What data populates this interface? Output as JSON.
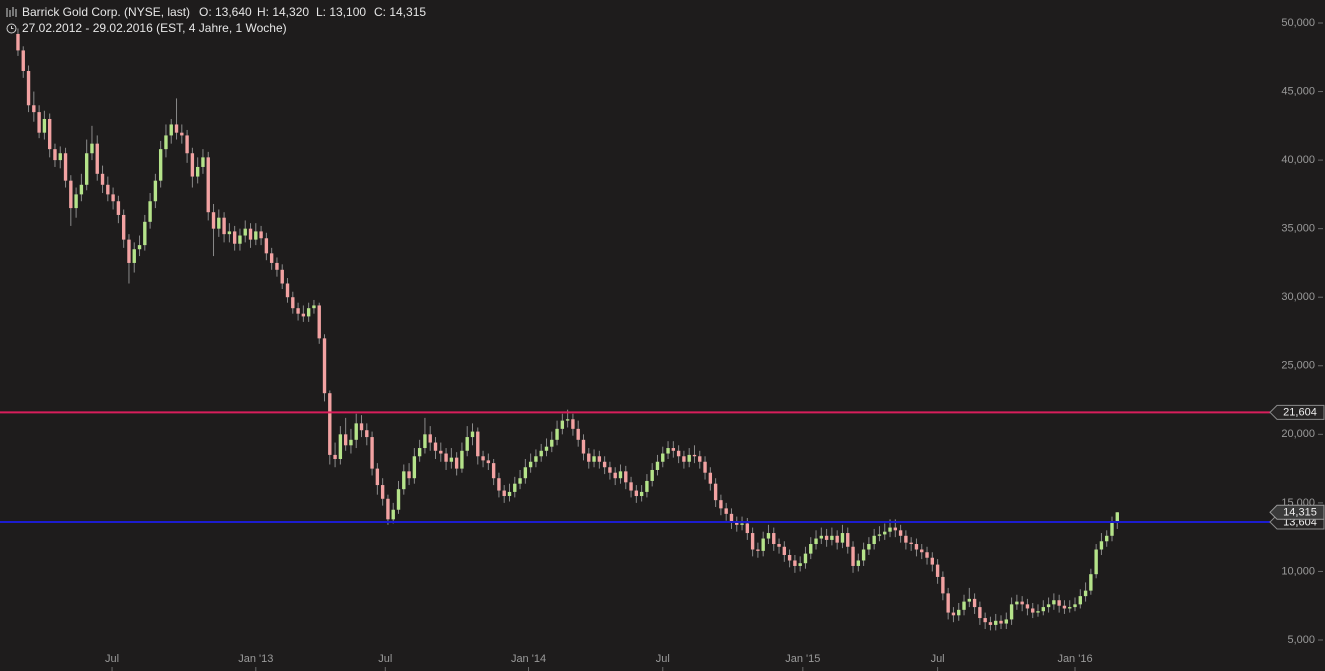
{
  "chart_data": {
    "type": "candlestick",
    "title": "Barrick Gold Corp. (NYSE, last)",
    "ohlc_summary": [
      "O: 13,640",
      "H: 14,320",
      "L: 13,100",
      "C: 14,315"
    ],
    "period": "27.02.2012 - 29.02.2016 (EST, 4 Jahre, 1 Woche)",
    "up_color": "#b5e38a",
    "down_color": "#f2a2a2",
    "wick_color": "#8a8a8a",
    "ylim": [
      2.739,
      51.677
    ],
    "yticks": [
      {
        "value": 5,
        "label": "5,000"
      },
      {
        "value": 10,
        "label": "10,000"
      },
      {
        "value": 15,
        "label": "15,000"
      },
      {
        "value": 20,
        "label": "20,000"
      },
      {
        "value": 25,
        "label": "25,000"
      },
      {
        "value": 30,
        "label": "30,000"
      },
      {
        "value": 35,
        "label": "35,000"
      },
      {
        "value": 40,
        "label": "40,000"
      },
      {
        "value": 45,
        "label": "45,000"
      },
      {
        "value": 50,
        "label": "50,000"
      }
    ],
    "xlim": [
      -3.4,
      247.3
    ],
    "xticks": [
      {
        "value": 17.8,
        "label": "Jul"
      },
      {
        "value": 45,
        "label": "Jan '13"
      },
      {
        "value": 69.5,
        "label": "Jul"
      },
      {
        "value": 96.6,
        "label": "Jan '14"
      },
      {
        "value": 122,
        "label": "Jul"
      },
      {
        "value": 148.5,
        "label": "Jan '15"
      },
      {
        "value": 174,
        "label": "Jul"
      },
      {
        "value": 200,
        "label": "Jan '16"
      }
    ],
    "grid": false,
    "hlines": [
      {
        "value": 21.604,
        "label": "21,604",
        "color": "#d81e5b"
      },
      {
        "value": 13.604,
        "label": "13,604",
        "color": "#1c1ccf"
      }
    ],
    "last_price": {
      "value": 14.315,
      "label": "14,315"
    },
    "ohlc": [
      [
        49.2,
        49.6,
        47.6,
        48.0
      ],
      [
        48.0,
        48.3,
        46.0,
        46.5
      ],
      [
        46.5,
        46.9,
        43.5,
        44.0
      ],
      [
        44.0,
        45.0,
        42.8,
        43.5
      ],
      [
        43.5,
        44.0,
        41.6,
        42.0
      ],
      [
        42.0,
        43.6,
        41.5,
        43.0
      ],
      [
        43.0,
        43.4,
        40.2,
        40.8
      ],
      [
        40.8,
        41.2,
        39.5,
        40.0
      ],
      [
        40.0,
        41.0,
        39.4,
        40.5
      ],
      [
        40.5,
        40.9,
        38.0,
        38.5
      ],
      [
        38.5,
        38.9,
        35.2,
        36.5
      ],
      [
        36.5,
        38.0,
        35.8,
        37.5
      ],
      [
        37.5,
        39.0,
        37.0,
        38.2
      ],
      [
        38.2,
        41.5,
        37.8,
        40.5
      ],
      [
        40.5,
        42.5,
        40.0,
        41.2
      ],
      [
        41.2,
        41.8,
        38.5,
        39.0
      ],
      [
        39.0,
        39.6,
        37.6,
        38.2
      ],
      [
        38.2,
        38.8,
        37.0,
        37.5
      ],
      [
        37.5,
        38.0,
        36.4,
        37.0
      ],
      [
        37.0,
        37.4,
        35.4,
        36.0
      ],
      [
        36.0,
        36.4,
        33.6,
        34.2
      ],
      [
        34.2,
        34.6,
        31.0,
        32.5
      ],
      [
        32.5,
        34.0,
        31.8,
        33.5
      ],
      [
        33.5,
        34.5,
        33.0,
        33.8
      ],
      [
        33.8,
        36.0,
        33.4,
        35.5
      ],
      [
        35.5,
        37.6,
        35.0,
        37.0
      ],
      [
        37.0,
        39.0,
        36.5,
        38.5
      ],
      [
        38.5,
        41.4,
        38.0,
        40.8
      ],
      [
        40.8,
        42.6,
        40.2,
        41.8
      ],
      [
        41.8,
        43.0,
        41.2,
        42.6
      ],
      [
        42.6,
        44.5,
        41.5,
        42.0
      ],
      [
        42.0,
        42.6,
        41.2,
        41.8
      ],
      [
        41.8,
        42.2,
        39.8,
        40.5
      ],
      [
        40.5,
        40.9,
        38.0,
        38.8
      ],
      [
        38.8,
        40.2,
        38.3,
        39.5
      ],
      [
        39.5,
        40.8,
        39.0,
        40.2
      ],
      [
        40.2,
        40.6,
        35.6,
        36.2
      ],
      [
        36.2,
        36.8,
        33.0,
        35.0
      ],
      [
        35.0,
        36.4,
        34.4,
        35.8
      ],
      [
        35.8,
        36.2,
        34.0,
        34.6
      ],
      [
        34.6,
        35.4,
        34.0,
        34.8
      ],
      [
        34.8,
        35.2,
        33.4,
        33.9
      ],
      [
        33.9,
        35.0,
        33.4,
        34.5
      ],
      [
        34.5,
        35.6,
        34.0,
        35.0
      ],
      [
        35.0,
        35.4,
        33.6,
        34.2
      ],
      [
        34.2,
        35.4,
        33.8,
        34.8
      ],
      [
        34.8,
        35.2,
        33.8,
        34.3
      ],
      [
        34.3,
        34.7,
        32.7,
        33.2
      ],
      [
        33.2,
        33.6,
        32.0,
        32.5
      ],
      [
        32.5,
        32.9,
        31.5,
        32.0
      ],
      [
        32.0,
        32.4,
        30.6,
        31.0
      ],
      [
        31.0,
        31.4,
        29.6,
        30.0
      ],
      [
        30.0,
        30.4,
        28.8,
        29.2
      ],
      [
        29.2,
        29.6,
        28.3,
        28.8
      ],
      [
        28.8,
        29.4,
        28.2,
        28.6
      ],
      [
        28.6,
        29.6,
        28.2,
        29.2
      ],
      [
        29.2,
        29.8,
        28.8,
        29.4
      ],
      [
        29.4,
        29.6,
        26.6,
        27.0
      ],
      [
        27.0,
        27.3,
        22.4,
        23.0
      ],
      [
        23.0,
        23.2,
        17.8,
        18.5
      ],
      [
        18.5,
        19.4,
        17.6,
        18.2
      ],
      [
        18.2,
        20.6,
        17.8,
        20.0
      ],
      [
        20.0,
        21.2,
        18.8,
        19.2
      ],
      [
        19.2,
        20.4,
        18.6,
        19.6
      ],
      [
        19.6,
        21.5,
        19.0,
        20.8
      ],
      [
        20.8,
        21.4,
        19.8,
        20.3
      ],
      [
        20.3,
        20.8,
        19.2,
        19.8
      ],
      [
        19.8,
        20.2,
        17.0,
        17.5
      ],
      [
        17.5,
        17.9,
        15.6,
        16.3
      ],
      [
        16.3,
        16.8,
        14.8,
        15.3
      ],
      [
        15.3,
        15.6,
        13.4,
        13.8
      ],
      [
        13.8,
        15.0,
        13.5,
        14.5
      ],
      [
        14.5,
        16.6,
        14.2,
        16.0
      ],
      [
        16.0,
        17.8,
        15.6,
        17.3
      ],
      [
        17.3,
        17.9,
        16.3,
        16.8
      ],
      [
        16.8,
        19.0,
        16.4,
        18.4
      ],
      [
        18.4,
        19.6,
        18.0,
        19.0
      ],
      [
        19.0,
        21.2,
        18.6,
        20.0
      ],
      [
        20.0,
        20.6,
        18.8,
        19.4
      ],
      [
        19.4,
        19.8,
        18.2,
        18.8
      ],
      [
        18.8,
        19.4,
        18.0,
        18.6
      ],
      [
        18.6,
        19.0,
        17.4,
        18.0
      ],
      [
        18.0,
        19.0,
        17.5,
        18.3
      ],
      [
        18.3,
        18.7,
        17.0,
        17.5
      ],
      [
        17.5,
        19.4,
        17.2,
        18.8
      ],
      [
        18.8,
        20.6,
        18.4,
        19.8
      ],
      [
        19.8,
        20.8,
        19.2,
        20.2
      ],
      [
        20.2,
        20.5,
        17.8,
        18.4
      ],
      [
        18.4,
        18.8,
        17.6,
        18.1
      ],
      [
        18.1,
        18.6,
        17.4,
        17.9
      ],
      [
        17.9,
        18.2,
        16.3,
        16.8
      ],
      [
        16.8,
        17.2,
        15.4,
        15.9
      ],
      [
        15.9,
        16.3,
        15.0,
        15.5
      ],
      [
        15.5,
        16.4,
        15.1,
        15.8
      ],
      [
        15.8,
        16.9,
        15.4,
        16.4
      ],
      [
        16.4,
        17.4,
        16.0,
        16.8
      ],
      [
        16.8,
        18.2,
        16.4,
        17.6
      ],
      [
        17.6,
        18.6,
        17.2,
        18.0
      ],
      [
        18.0,
        18.9,
        17.6,
        18.4
      ],
      [
        18.4,
        19.3,
        18.0,
        18.8
      ],
      [
        18.8,
        19.7,
        18.4,
        19.1
      ],
      [
        19.1,
        20.2,
        18.7,
        19.6
      ],
      [
        19.6,
        21.0,
        19.2,
        20.4
      ],
      [
        20.4,
        21.5,
        20.0,
        21.0
      ],
      [
        21.0,
        21.8,
        20.5,
        21.1
      ],
      [
        21.1,
        21.5,
        19.9,
        20.4
      ],
      [
        20.4,
        21.0,
        19.1,
        19.6
      ],
      [
        19.6,
        20.0,
        18.1,
        18.6
      ],
      [
        18.6,
        19.0,
        17.5,
        18.0
      ],
      [
        18.0,
        18.9,
        17.6,
        18.4
      ],
      [
        18.4,
        18.8,
        17.5,
        18.0
      ],
      [
        18.0,
        18.4,
        17.1,
        17.6
      ],
      [
        17.6,
        18.0,
        16.7,
        17.2
      ],
      [
        17.2,
        17.6,
        16.3,
        16.8
      ],
      [
        16.8,
        17.8,
        16.4,
        17.3
      ],
      [
        17.3,
        17.7,
        16.0,
        16.5
      ],
      [
        16.5,
        16.9,
        15.4,
        15.9
      ],
      [
        15.9,
        16.3,
        15.0,
        15.5
      ],
      [
        15.5,
        16.3,
        15.1,
        15.8
      ],
      [
        15.8,
        17.1,
        15.4,
        16.6
      ],
      [
        16.6,
        17.9,
        16.2,
        17.4
      ],
      [
        17.4,
        18.5,
        17.0,
        18.0
      ],
      [
        18.0,
        19.1,
        17.6,
        18.6
      ],
      [
        18.6,
        19.5,
        18.2,
        19.0
      ],
      [
        19.0,
        19.5,
        18.3,
        18.8
      ],
      [
        18.8,
        19.2,
        17.9,
        18.4
      ],
      [
        18.4,
        18.8,
        17.5,
        18.0
      ],
      [
        18.0,
        19.0,
        17.6,
        18.5
      ],
      [
        18.5,
        19.2,
        17.9,
        18.4
      ],
      [
        18.4,
        18.8,
        17.5,
        18.0
      ],
      [
        18.0,
        18.4,
        16.7,
        17.2
      ],
      [
        17.2,
        17.6,
        15.9,
        16.4
      ],
      [
        16.4,
        16.8,
        14.7,
        15.2
      ],
      [
        15.2,
        15.6,
        14.1,
        14.6
      ],
      [
        14.6,
        15.0,
        13.7,
        14.2
      ],
      [
        14.2,
        14.6,
        13.1,
        13.6
      ],
      [
        13.6,
        14.0,
        12.9,
        13.4
      ],
      [
        13.4,
        14.0,
        13.0,
        13.5
      ],
      [
        13.5,
        13.9,
        12.3,
        12.8
      ],
      [
        12.8,
        13.2,
        11.1,
        11.6
      ],
      [
        11.6,
        12.1,
        11.0,
        11.5
      ],
      [
        11.5,
        12.9,
        11.1,
        12.4
      ],
      [
        12.4,
        13.4,
        12.0,
        12.8
      ],
      [
        12.8,
        13.2,
        11.5,
        12.0
      ],
      [
        12.0,
        12.4,
        11.3,
        11.8
      ],
      [
        11.8,
        12.2,
        10.7,
        11.2
      ],
      [
        11.2,
        11.6,
        10.3,
        10.8
      ],
      [
        10.8,
        11.2,
        9.9,
        10.4
      ],
      [
        10.4,
        11.1,
        10.0,
        10.6
      ],
      [
        10.6,
        11.8,
        10.2,
        11.3
      ],
      [
        11.3,
        12.5,
        10.9,
        12.0
      ],
      [
        12.0,
        13.0,
        11.6,
        12.4
      ],
      [
        12.4,
        13.2,
        12.0,
        12.6
      ],
      [
        12.6,
        13.1,
        11.8,
        12.3
      ],
      [
        12.3,
        13.2,
        11.9,
        12.6
      ],
      [
        12.6,
        13.0,
        11.6,
        12.1
      ],
      [
        12.1,
        13.4,
        11.7,
        12.8
      ],
      [
        12.8,
        13.2,
        11.3,
        11.8
      ],
      [
        11.8,
        12.2,
        9.9,
        10.4
      ],
      [
        10.4,
        11.3,
        10.0,
        10.8
      ],
      [
        10.8,
        12.1,
        10.4,
        11.6
      ],
      [
        11.6,
        12.5,
        11.2,
        12.0
      ],
      [
        12.0,
        13.1,
        11.6,
        12.6
      ],
      [
        12.6,
        13.3,
        12.2,
        12.7
      ],
      [
        12.7,
        13.5,
        12.3,
        12.9
      ],
      [
        12.9,
        13.8,
        12.5,
        13.2
      ],
      [
        13.2,
        13.8,
        12.5,
        13.0
      ],
      [
        13.0,
        13.4,
        12.1,
        12.6
      ],
      [
        12.6,
        13.0,
        11.6,
        12.1
      ],
      [
        12.1,
        12.5,
        11.5,
        12.0
      ],
      [
        12.0,
        12.4,
        11.1,
        11.6
      ],
      [
        11.6,
        12.0,
        10.9,
        11.4
      ],
      [
        11.4,
        11.8,
        10.5,
        11.0
      ],
      [
        11.0,
        11.4,
        10.0,
        10.5
      ],
      [
        10.5,
        10.9,
        9.1,
        9.6
      ],
      [
        9.6,
        10.0,
        7.9,
        8.4
      ],
      [
        8.4,
        8.8,
        6.5,
        7.0
      ],
      [
        7.0,
        7.4,
        6.3,
        6.8
      ],
      [
        6.8,
        7.7,
        6.4,
        7.2
      ],
      [
        7.2,
        8.3,
        6.8,
        7.8
      ],
      [
        7.8,
        8.8,
        7.4,
        8.0
      ],
      [
        8.0,
        8.4,
        6.9,
        7.4
      ],
      [
        7.4,
        7.8,
        6.1,
        6.6
      ],
      [
        6.6,
        7.0,
        5.8,
        6.3
      ],
      [
        6.3,
        6.7,
        5.7,
        6.1
      ],
      [
        6.1,
        6.9,
        5.7,
        6.4
      ],
      [
        6.4,
        6.8,
        5.8,
        6.2
      ],
      [
        6.2,
        7.0,
        5.8,
        6.5
      ],
      [
        6.5,
        8.1,
        6.1,
        7.6
      ],
      [
        7.6,
        8.3,
        7.2,
        7.8
      ],
      [
        7.8,
        8.2,
        7.1,
        7.6
      ],
      [
        7.6,
        8.0,
        6.8,
        7.3
      ],
      [
        7.3,
        7.7,
        6.6,
        7.0
      ],
      [
        7.0,
        7.6,
        6.7,
        7.1
      ],
      [
        7.1,
        7.9,
        6.8,
        7.4
      ],
      [
        7.4,
        8.1,
        7.0,
        7.6
      ],
      [
        7.6,
        8.4,
        7.2,
        7.9
      ],
      [
        7.9,
        8.3,
        7.0,
        7.5
      ],
      [
        7.5,
        7.9,
        6.9,
        7.3
      ],
      [
        7.3,
        7.9,
        7.0,
        7.4
      ],
      [
        7.4,
        8.1,
        7.1,
        7.6
      ],
      [
        7.6,
        8.7,
        7.3,
        8.2
      ],
      [
        8.2,
        9.2,
        7.8,
        8.6
      ],
      [
        8.6,
        10.2,
        8.3,
        9.8
      ],
      [
        9.8,
        12.0,
        9.5,
        11.6
      ],
      [
        11.6,
        12.8,
        11.2,
        12.2
      ],
      [
        12.2,
        13.0,
        11.8,
        12.6
      ],
      [
        12.6,
        14.0,
        12.2,
        13.6
      ],
      [
        13.64,
        14.32,
        13.1,
        14.315
      ]
    ]
  }
}
